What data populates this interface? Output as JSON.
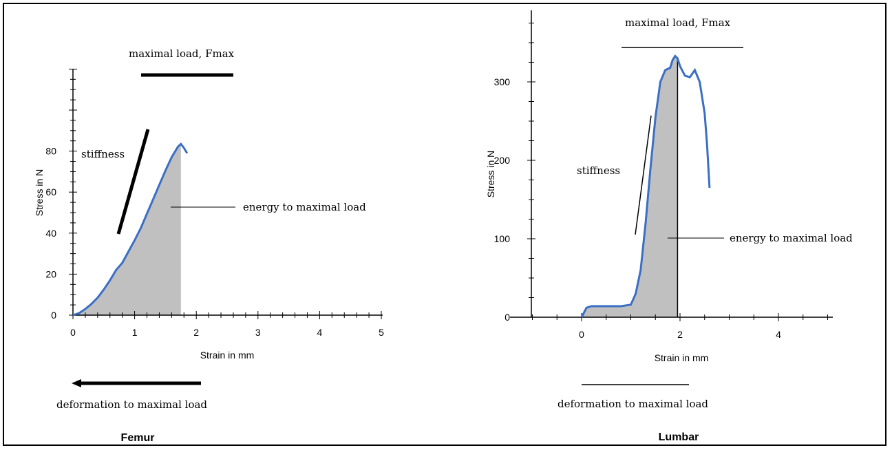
{
  "chart_data": [
    {
      "type": "area",
      "caption": "Femur",
      "xlabel": "Strain in mm",
      "ylabel": "Stress in N",
      "xlim": [
        0,
        5
      ],
      "ylim": [
        0,
        80
      ],
      "x_ticks": [
        "0",
        "1",
        "2",
        "3",
        "4",
        "5"
      ],
      "y_ticks": [
        "0",
        "20",
        "40",
        "60",
        "80"
      ],
      "grid": false,
      "series": [
        {
          "color": "#3a6fc4",
          "x": [
            0,
            0.1,
            0.2,
            0.3,
            0.4,
            0.5,
            0.6,
            0.7,
            0.8,
            0.9,
            1.0,
            1.1,
            1.2,
            1.3,
            1.4,
            1.5,
            1.6,
            1.7,
            1.75,
            1.8,
            1.85
          ],
          "y": [
            0,
            1,
            3,
            5.5,
            8.5,
            12.5,
            17,
            22,
            25.5,
            31,
            36.5,
            42.5,
            49.5,
            56.5,
            63.5,
            70.5,
            77,
            82,
            83.5,
            81.5,
            79
          ]
        }
      ],
      "shaded_to_x": 1.75,
      "annotations": {
        "fmax": "maximal load, Fmax",
        "stiffness": "stiffness",
        "energy": "energy to maximal load",
        "deformation": "deformation to maximal load"
      }
    },
    {
      "type": "area",
      "caption": "Lumbar",
      "xlabel": "Strain in mm",
      "ylabel": "Stress in N",
      "xlim": [
        -1,
        5
      ],
      "ylim": [
        0,
        300
      ],
      "x_ticks": [
        "0",
        "2",
        "4"
      ],
      "y_ticks": [
        "0",
        "100",
        "200",
        "300"
      ],
      "grid": false,
      "series": [
        {
          "color": "#3a6fc4",
          "x": [
            0,
            0.1,
            0.2,
            0.4,
            0.6,
            0.8,
            1.0,
            1.1,
            1.2,
            1.3,
            1.4,
            1.5,
            1.6,
            1.7,
            1.8,
            1.85,
            1.9,
            1.95,
            2.0,
            2.1,
            2.2,
            2.3,
            2.4,
            2.5,
            2.55,
            2.6
          ],
          "y": [
            0,
            12,
            14,
            14,
            14,
            14,
            16,
            30,
            60,
            120,
            190,
            255,
            300,
            315,
            318,
            328,
            333,
            330,
            320,
            308,
            306,
            315,
            300,
            260,
            220,
            165
          ]
        }
      ],
      "shaded_to_x": 1.95,
      "annotations": {
        "fmax": "maximal load, Fmax",
        "stiffness": "stiffness",
        "energy": "energy to maximal load",
        "deformation": "deformation to maximal load"
      }
    }
  ]
}
